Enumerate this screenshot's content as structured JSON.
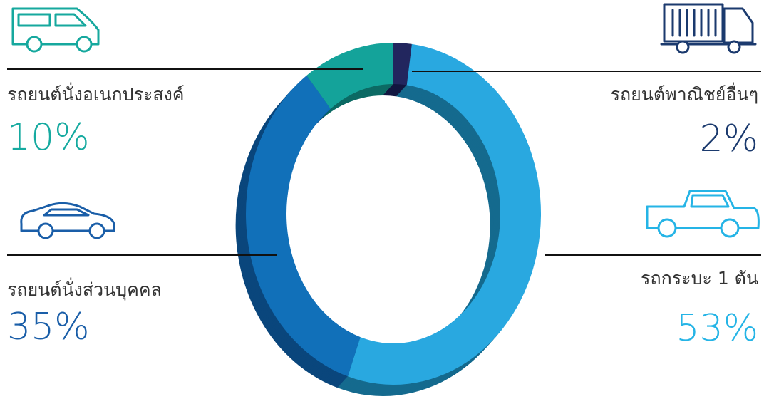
{
  "chart_data": {
    "type": "donut",
    "categories": [
      "รถยนต์พาณิชย์อื่นๆ",
      "รถกระบะ 1 ตัน",
      "รถยนต์นั่งส่วนบุคคล",
      "รถยนต์นั่งอเนกประสงค์"
    ],
    "values": [
      2,
      53,
      35,
      10
    ],
    "value_labels": [
      "2%",
      "53%",
      "35%",
      "10%"
    ],
    "colors": [
      "#22265e",
      "#29a8e0",
      "#1170b9",
      "#14a39a"
    ],
    "side_colors": [
      "#121640",
      "#156a8e",
      "#0a467c",
      "#0c6a64"
    ],
    "label_colors": [
      "#1b3a6e",
      "#25b4e6",
      "#1a5ea8",
      "#16aaa0"
    ]
  }
}
